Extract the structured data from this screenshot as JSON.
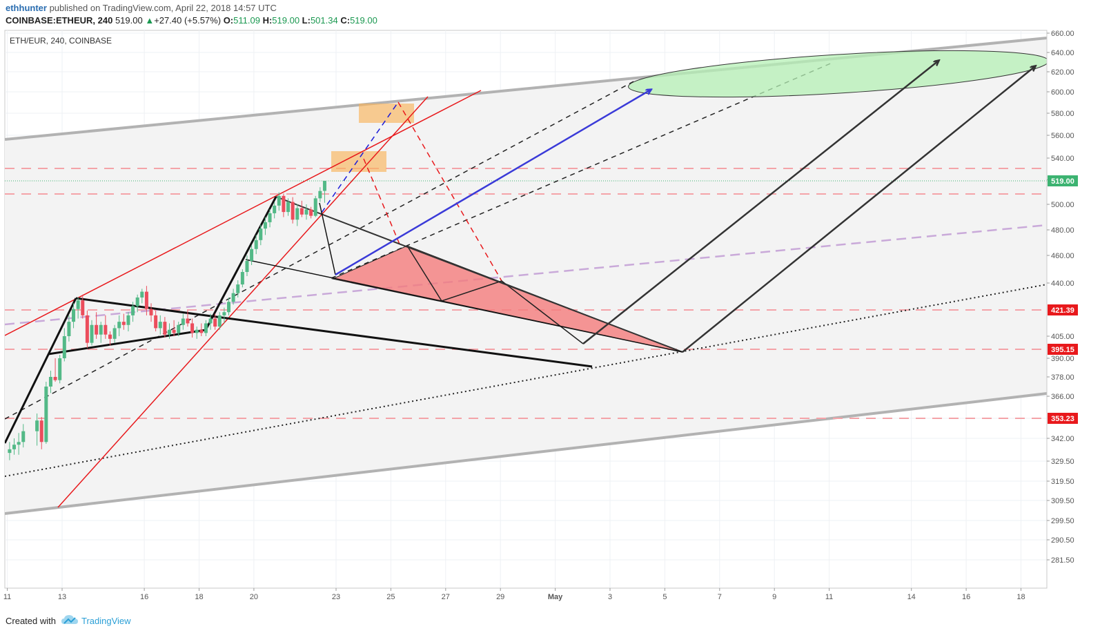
{
  "header": {
    "author": "ethhunter",
    "published_text": " published on TradingView.com, April 22, 2018 14:57 UTC",
    "symbol": "COINBASE:ETHEUR, 240",
    "last": "519.00",
    "change_arrow": "▲",
    "change": "+27.40 (+5.57%)",
    "o_label": "O:",
    "o_val": "511.09",
    "h_label": "H:",
    "h_val": "519.00",
    "l_label": "L:",
    "l_val": "501.34",
    "c_label": "C:",
    "c_val": "519.00"
  },
  "footer": {
    "created_with": "Created with",
    "brand": "TradingView"
  },
  "colors": {
    "up": "#53b987",
    "down": "#eb4d5c",
    "channel": "#b2b2b2",
    "red_line": "#e8191c",
    "blue_arrow": "#3a3ad8",
    "triangle_fill": "#f47c7c",
    "ellipse_fill": "#b6f0b6",
    "box_fill": "#f9b45a",
    "purple_dash": "#c9a9d9",
    "level_label_bg": "#e8191c",
    "last_label_bg": "#3cb371"
  },
  "chart_data": {
    "type": "candlestick",
    "title": "ETH/EUR, 240, COINBASE",
    "y_ticks": [
      "660.00",
      "640.00",
      "620.00",
      "600.00",
      "580.00",
      "560.00",
      "540.00",
      "520.00",
      "500.00",
      "480.00",
      "460.00",
      "440.00",
      "421.39",
      "405.00",
      "395.15",
      "390.00",
      "378.00",
      "366.00",
      "353.23",
      "342.00",
      "329.50",
      "319.50",
      "309.50",
      "299.50",
      "290.50",
      "281.50"
    ],
    "x_ticks": [
      "11",
      "13",
      "16",
      "18",
      "20",
      "23",
      "25",
      "27",
      "29",
      "May",
      "3",
      "5",
      "7",
      "9",
      "11",
      "14",
      "16",
      "18"
    ],
    "price_levels": [
      {
        "label": "530.05"
      },
      {
        "label": "508.65"
      },
      {
        "label": "421.39"
      },
      {
        "label": "395.15"
      },
      {
        "label": "353.23"
      }
    ],
    "last_price": "519.00",
    "candles": [
      {
        "d": "2018-04-11",
        "o": 334.0,
        "h": 340.0,
        "l": 330.0,
        "c": 336.0
      },
      {
        "d": "2018-04-11",
        "o": 336.0,
        "h": 342.0,
        "l": 333.0,
        "c": 338.5
      },
      {
        "d": "2018-04-11",
        "o": 338.5,
        "h": 345.0,
        "l": 333.0,
        "c": 340.0
      },
      {
        "d": "2018-04-11",
        "o": 340.0,
        "h": 350.0,
        "l": 337.0,
        "c": 346.0
      },
      {
        "d": "2018-04-12",
        "o": 346.0,
        "h": 356.0,
        "l": 338.0,
        "c": 352.0
      },
      {
        "d": "2018-04-12",
        "o": 352.0,
        "h": 354.0,
        "l": 336.0,
        "c": 340.0
      },
      {
        "d": "2018-04-12",
        "o": 340.0,
        "h": 375.0,
        "l": 339.0,
        "c": 372.0
      },
      {
        "d": "2018-04-12",
        "o": 372.0,
        "h": 382.0,
        "l": 368.0,
        "c": 378.0
      },
      {
        "d": "2018-04-12",
        "o": 378.0,
        "h": 390.0,
        "l": 375.0,
        "c": 376.0
      },
      {
        "d": "2018-04-12",
        "o": 376.0,
        "h": 392.0,
        "l": 374.0,
        "c": 390.0
      },
      {
        "d": "2018-04-13",
        "o": 390.0,
        "h": 410.0,
        "l": 388.0,
        "c": 405.0
      },
      {
        "d": "2018-04-13",
        "o": 405.0,
        "h": 418.0,
        "l": 401.0,
        "c": 414.0
      },
      {
        "d": "2018-04-13",
        "o": 414.0,
        "h": 426.0,
        "l": 410.0,
        "c": 422.0
      },
      {
        "d": "2018-04-13",
        "o": 422.0,
        "h": 430.0,
        "l": 416.0,
        "c": 428.0
      },
      {
        "d": "2018-04-13",
        "o": 428.0,
        "h": 432.0,
        "l": 416.0,
        "c": 418.0
      },
      {
        "d": "2018-04-13",
        "o": 418.0,
        "h": 421.0,
        "l": 396.0,
        "c": 400.0
      },
      {
        "d": "2018-04-14",
        "o": 400.0,
        "h": 415.0,
        "l": 398.0,
        "c": 412.0
      },
      {
        "d": "2018-04-14",
        "o": 412.0,
        "h": 420.0,
        "l": 403.0,
        "c": 406.0
      },
      {
        "d": "2018-04-14",
        "o": 406.0,
        "h": 414.0,
        "l": 400.0,
        "c": 412.0
      },
      {
        "d": "2018-04-14",
        "o": 412.0,
        "h": 418.0,
        "l": 403.0,
        "c": 406.0
      },
      {
        "d": "2018-04-14",
        "o": 406.0,
        "h": 408.0,
        "l": 398.0,
        "c": 403.0
      },
      {
        "d": "2018-04-14",
        "o": 403.0,
        "h": 412.0,
        "l": 400.0,
        "c": 410.0
      },
      {
        "d": "2018-04-15",
        "o": 410.0,
        "h": 418.0,
        "l": 405.0,
        "c": 414.0
      },
      {
        "d": "2018-04-15",
        "o": 414.0,
        "h": 419.0,
        "l": 409.0,
        "c": 412.0
      },
      {
        "d": "2018-04-15",
        "o": 412.0,
        "h": 420.0,
        "l": 408.0,
        "c": 418.0
      },
      {
        "d": "2018-04-15",
        "o": 418.0,
        "h": 427.0,
        "l": 414.0,
        "c": 424.0
      },
      {
        "d": "2018-04-15",
        "o": 424.0,
        "h": 432.0,
        "l": 420.0,
        "c": 430.0
      },
      {
        "d": "2018-04-15",
        "o": 430.0,
        "h": 436.0,
        "l": 426.0,
        "c": 434.0
      },
      {
        "d": "2018-04-16",
        "o": 434.0,
        "h": 438.0,
        "l": 418.0,
        "c": 422.0
      },
      {
        "d": "2018-04-16",
        "o": 422.0,
        "h": 426.0,
        "l": 414.0,
        "c": 418.0
      },
      {
        "d": "2018-04-16",
        "o": 418.0,
        "h": 421.0,
        "l": 408.0,
        "c": 410.0
      },
      {
        "d": "2018-04-16",
        "o": 410.0,
        "h": 418.0,
        "l": 406.0,
        "c": 414.0
      },
      {
        "d": "2018-04-16",
        "o": 414.0,
        "h": 417.0,
        "l": 404.0,
        "c": 406.0
      },
      {
        "d": "2018-04-16",
        "o": 406.0,
        "h": 413.0,
        "l": 403.0,
        "c": 409.0
      },
      {
        "d": "2018-04-17",
        "o": 409.0,
        "h": 415.0,
        "l": 405.0,
        "c": 407.0
      },
      {
        "d": "2018-04-17",
        "o": 407.0,
        "h": 414.0,
        "l": 405.0,
        "c": 412.0
      },
      {
        "d": "2018-04-17",
        "o": 412.0,
        "h": 419.0,
        "l": 409.0,
        "c": 416.0
      },
      {
        "d": "2018-04-17",
        "o": 416.0,
        "h": 421.0,
        "l": 411.0,
        "c": 413.0
      },
      {
        "d": "2018-04-17",
        "o": 413.0,
        "h": 416.0,
        "l": 404.0,
        "c": 407.0
      },
      {
        "d": "2018-04-17",
        "o": 407.0,
        "h": 411.0,
        "l": 403.0,
        "c": 409.0
      },
      {
        "d": "2018-04-18",
        "o": 409.0,
        "h": 413.0,
        "l": 405.0,
        "c": 407.0
      },
      {
        "d": "2018-04-18",
        "o": 407.0,
        "h": 415.0,
        "l": 405.0,
        "c": 413.0
      },
      {
        "d": "2018-04-18",
        "o": 413.0,
        "h": 419.0,
        "l": 409.0,
        "c": 416.0
      },
      {
        "d": "2018-04-18",
        "o": 416.0,
        "h": 419.0,
        "l": 409.0,
        "c": 411.0
      },
      {
        "d": "2018-04-18",
        "o": 411.0,
        "h": 420.0,
        "l": 409.0,
        "c": 418.0
      },
      {
        "d": "2018-04-18",
        "o": 418.0,
        "h": 423.0,
        "l": 413.0,
        "c": 420.0
      },
      {
        "d": "2018-04-19",
        "o": 420.0,
        "h": 430.0,
        "l": 418.0,
        "c": 427.0
      },
      {
        "d": "2018-04-19",
        "o": 427.0,
        "h": 436.0,
        "l": 425.0,
        "c": 433.0
      },
      {
        "d": "2018-04-19",
        "o": 433.0,
        "h": 442.0,
        "l": 430.0,
        "c": 439.0
      },
      {
        "d": "2018-04-19",
        "o": 439.0,
        "h": 450.0,
        "l": 437.0,
        "c": 448.0
      },
      {
        "d": "2018-04-19",
        "o": 448.0,
        "h": 460.0,
        "l": 445.0,
        "c": 456.0
      },
      {
        "d": "2018-04-19",
        "o": 456.0,
        "h": 468.0,
        "l": 453.0,
        "c": 465.0
      },
      {
        "d": "2018-04-20",
        "o": 465.0,
        "h": 476.0,
        "l": 461.0,
        "c": 472.0
      },
      {
        "d": "2018-04-20",
        "o": 472.0,
        "h": 484.0,
        "l": 468.0,
        "c": 481.0
      },
      {
        "d": "2018-04-20",
        "o": 481.0,
        "h": 490.0,
        "l": 476.0,
        "c": 486.0
      },
      {
        "d": "2018-04-20",
        "o": 486.0,
        "h": 496.0,
        "l": 482.0,
        "c": 493.0
      },
      {
        "d": "2018-04-20",
        "o": 493.0,
        "h": 502.0,
        "l": 489.0,
        "c": 499.0
      },
      {
        "d": "2018-04-20",
        "o": 499.0,
        "h": 510.0,
        "l": 495.0,
        "c": 507.0
      },
      {
        "d": "2018-04-21",
        "o": 507.0,
        "h": 509.0,
        "l": 490.0,
        "c": 494.0
      },
      {
        "d": "2018-04-21",
        "o": 494.0,
        "h": 505.0,
        "l": 491.0,
        "c": 502.0
      },
      {
        "d": "2018-04-21",
        "o": 502.0,
        "h": 506.0,
        "l": 485.0,
        "c": 488.0
      },
      {
        "d": "2018-04-21",
        "o": 488.0,
        "h": 500.0,
        "l": 483.0,
        "c": 497.0
      },
      {
        "d": "2018-04-21",
        "o": 497.0,
        "h": 503.0,
        "l": 490.0,
        "c": 492.0
      },
      {
        "d": "2018-04-21",
        "o": 492.0,
        "h": 500.0,
        "l": 488.0,
        "c": 496.0
      },
      {
        "d": "2018-04-22",
        "o": 496.0,
        "h": 498.0,
        "l": 489.0,
        "c": 491.0
      },
      {
        "d": "2018-04-22",
        "o": 491.0,
        "h": 507.0,
        "l": 490.0,
        "c": 505.0
      },
      {
        "d": "2018-04-22",
        "o": 505.0,
        "h": 514.0,
        "l": 502.0,
        "c": 511.0
      },
      {
        "d": "2018-04-22",
        "o": 511.09,
        "h": 519.0,
        "l": 501.34,
        "c": 519.0
      }
    ]
  }
}
